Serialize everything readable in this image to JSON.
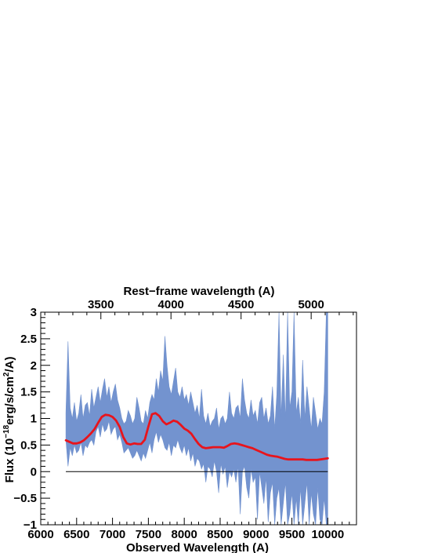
{
  "chart_data": {
    "type": "line",
    "top_axis_title": "Rest−frame wavelength (A)",
    "xlabel": "Observed Wavelength (A)",
    "ylabel_parts": [
      "Flux (10",
      "−18",
      "erg/s/cm",
      "2",
      "/A)"
    ],
    "xlim": [
      6000,
      10400
    ],
    "ylim": [
      -1,
      3
    ],
    "x_ticks": [
      {
        "v": 6000,
        "label": "6000"
      },
      {
        "v": 6500,
        "label": "6500"
      },
      {
        "v": 7000,
        "label": "7000"
      },
      {
        "v": 7500,
        "label": "7500"
      },
      {
        "v": 8000,
        "label": "8000"
      },
      {
        "v": 8500,
        "label": "8500"
      },
      {
        "v": 9000,
        "label": "9000"
      },
      {
        "v": 9500,
        "label": "9500"
      },
      {
        "v": 10000,
        "label": "10000"
      }
    ],
    "y_ticks": [
      {
        "v": -1,
        "label": "−1"
      },
      {
        "v": -0.5,
        "label": "−0.5"
      },
      {
        "v": 0,
        "label": "0"
      },
      {
        "v": 0.5,
        "label": "0.5"
      },
      {
        "v": 1,
        "label": "1"
      },
      {
        "v": 1.5,
        "label": "1.5"
      },
      {
        "v": 2,
        "label": "2"
      },
      {
        "v": 2.5,
        "label": "2.5"
      },
      {
        "v": 3,
        "label": "3"
      }
    ],
    "top_ticks": [
      {
        "v": 3500,
        "label": "3500"
      },
      {
        "v": 4000,
        "label": "4000"
      },
      {
        "v": 4500,
        "label": "4500"
      },
      {
        "v": 5000,
        "label": "5000"
      }
    ],
    "redshift": 0.9537,
    "zero_line": 0,
    "grid": false,
    "colors": {
      "spectrum": "#7393cf",
      "model": "#e8141c",
      "axes": "#000000"
    },
    "series": [
      {
        "kind": "noisy-band",
        "x": [
          6350,
          6380,
          6410,
          6440,
          6470,
          6500,
          6530,
          6560,
          6590,
          6620,
          6650,
          6680,
          6710,
          6740,
          6770,
          6800,
          6830,
          6860,
          6890,
          6920,
          6950,
          6980,
          7010,
          7040,
          7070,
          7100,
          7130,
          7160,
          7190,
          7220,
          7250,
          7280,
          7310,
          7340,
          7370,
          7400,
          7430,
          7460,
          7490,
          7520,
          7550,
          7580,
          7610,
          7640,
          7670,
          7700,
          7730,
          7760,
          7790,
          7820,
          7850,
          7880,
          7910,
          7940,
          7970,
          8000,
          8030,
          8060,
          8090,
          8120,
          8150,
          8180,
          8210,
          8240,
          8270,
          8300,
          8330,
          8360,
          8390,
          8420,
          8450,
          8480,
          8510,
          8540,
          8570,
          8600,
          8630,
          8660,
          8690,
          8720,
          8750,
          8780,
          8810,
          8840,
          8870,
          8900,
          8930,
          8960,
          8990,
          9020,
          9050,
          9080,
          9110,
          9140,
          9170,
          9200,
          9230,
          9260,
          9290,
          9320,
          9350,
          9380,
          9410,
          9440,
          9470,
          9500,
          9530,
          9560,
          9590,
          9620,
          9650,
          9680,
          9710,
          9740,
          9770,
          9800,
          9830,
          9860,
          9890,
          9920,
          9950,
          9980,
          10000
        ],
        "upper": [
          1.1,
          2.45,
          1.2,
          1.0,
          1.3,
          0.95,
          1.1,
          1.45,
          1.0,
          1.25,
          1.3,
          1.05,
          1.55,
          1.2,
          1.4,
          1.6,
          1.3,
          1.55,
          1.75,
          1.4,
          1.6,
          1.3,
          1.5,
          1.65,
          1.35,
          1.2,
          1.0,
          0.9,
          0.95,
          1.15,
          1.05,
          0.9,
          1.0,
          1.4,
          1.2,
          0.95,
          0.9,
          1.15,
          1.0,
          1.3,
          1.45,
          1.35,
          1.75,
          1.5,
          1.9,
          1.7,
          2.55,
          2.0,
          1.6,
          1.45,
          1.7,
          1.95,
          1.5,
          1.4,
          1.6,
          1.35,
          1.45,
          1.25,
          1.5,
          1.3,
          1.1,
          1.25,
          1.0,
          1.55,
          1.05,
          0.9,
          1.1,
          0.85,
          0.95,
          1.0,
          1.2,
          0.8,
          1.0,
          1.05,
          0.9,
          1.0,
          1.5,
          1.1,
          1.0,
          1.2,
          1.25,
          1.0,
          1.75,
          1.35,
          1.1,
          1.0,
          1.35,
          1.05,
          1.15,
          0.9,
          1.3,
          1.4,
          1.0,
          1.2,
          0.9,
          1.05,
          1.6,
          0.8,
          1.45,
          3.0,
          1.0,
          2.2,
          0.95,
          3.0,
          1.2,
          1.5,
          3.0,
          1.1,
          1.4,
          0.9,
          2.1,
          1.0,
          1.6,
          1.2,
          0.8,
          1.4,
          1.1,
          0.8,
          1.0,
          0.9,
          1.5,
          3.0,
          3.0
        ],
        "lower": [
          0.6,
          0.1,
          0.45,
          0.3,
          0.5,
          0.35,
          0.4,
          0.55,
          0.3,
          0.5,
          0.45,
          0.55,
          0.6,
          0.5,
          0.75,
          0.85,
          0.65,
          0.9,
          0.75,
          0.8,
          0.95,
          0.7,
          0.8,
          0.85,
          0.6,
          0.7,
          0.55,
          0.35,
          0.4,
          0.45,
          0.35,
          0.25,
          0.3,
          0.4,
          0.3,
          0.2,
          0.35,
          0.25,
          0.4,
          0.55,
          0.35,
          0.6,
          0.75,
          0.55,
          0.7,
          0.6,
          0.45,
          0.4,
          0.55,
          0.3,
          0.5,
          0.45,
          0.6,
          0.45,
          0.35,
          0.5,
          0.3,
          0.45,
          0.2,
          0.35,
          0.1,
          0.25,
          0.2,
          0.05,
          0.15,
          -0.2,
          0.1,
          0.05,
          -0.1,
          0.2,
          0.0,
          -0.4,
          0.15,
          -0.05,
          0.1,
          -0.3,
          0.0,
          -0.1,
          0.05,
          -0.2,
          0.1,
          -0.8,
          0.0,
          0.1,
          -0.3,
          -0.5,
          0.05,
          -0.2,
          -0.1,
          -0.9,
          0.0,
          -0.3,
          -0.6,
          -0.1,
          -0.95,
          -0.4,
          -0.2,
          -1.0,
          -0.5,
          -0.3,
          -1.0,
          -0.6,
          -0.2,
          -1.0,
          -0.8,
          -0.4,
          -1.0,
          -0.5,
          -1.0,
          -0.3,
          -1.0,
          -0.6,
          -0.2,
          -1.0,
          -0.4,
          -0.8,
          -1.0,
          -0.3,
          -0.9,
          -1.0,
          -0.5,
          -1.0,
          -1.0
        ]
      },
      {
        "kind": "model-line",
        "x": [
          6350,
          6400,
          6450,
          6500,
          6550,
          6600,
          6650,
          6700,
          6750,
          6800,
          6850,
          6900,
          6950,
          7000,
          7050,
          7100,
          7150,
          7200,
          7250,
          7300,
          7350,
          7400,
          7450,
          7500,
          7550,
          7600,
          7650,
          7700,
          7750,
          7800,
          7850,
          7900,
          7950,
          8000,
          8050,
          8100,
          8150,
          8200,
          8250,
          8300,
          8350,
          8400,
          8450,
          8500,
          8550,
          8600,
          8650,
          8700,
          8750,
          8800,
          8850,
          8900,
          8950,
          9000,
          9050,
          9100,
          9150,
          9200,
          9250,
          9300,
          9350,
          9400,
          9450,
          9500,
          9550,
          9600,
          9650,
          9700,
          9750,
          9800,
          9850,
          9900,
          9950,
          10000
        ],
        "y": [
          0.59,
          0.56,
          0.53,
          0.53,
          0.55,
          0.59,
          0.65,
          0.72,
          0.8,
          0.92,
          1.03,
          1.07,
          1.06,
          1.03,
          0.96,
          0.84,
          0.65,
          0.53,
          0.51,
          0.53,
          0.52,
          0.52,
          0.6,
          0.85,
          1.08,
          1.1,
          1.05,
          0.95,
          0.89,
          0.92,
          0.96,
          0.94,
          0.88,
          0.81,
          0.77,
          0.71,
          0.61,
          0.52,
          0.46,
          0.44,
          0.45,
          0.46,
          0.46,
          0.46,
          0.45,
          0.48,
          0.52,
          0.53,
          0.52,
          0.5,
          0.48,
          0.46,
          0.44,
          0.41,
          0.38,
          0.35,
          0.32,
          0.3,
          0.29,
          0.28,
          0.26,
          0.24,
          0.23,
          0.23,
          0.23,
          0.23,
          0.23,
          0.22,
          0.22,
          0.22,
          0.22,
          0.23,
          0.24,
          0.25
        ]
      }
    ]
  }
}
